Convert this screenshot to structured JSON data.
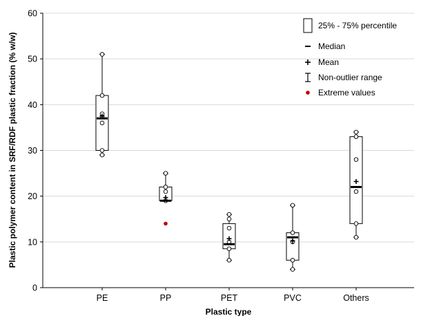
{
  "chart_data": {
    "type": "box",
    "xlabel": "Plastic type",
    "ylabel": "Plastic polymer content in SRF/RDF plastic fraction (% w/w)",
    "ylim": [
      0,
      60
    ],
    "yticks": [
      0,
      10,
      20,
      30,
      40,
      50,
      60
    ],
    "grid": true,
    "legend_position": "top-right",
    "categories": [
      "PE",
      "PP",
      "PET",
      "PVC",
      "Others"
    ],
    "boxes": [
      {
        "category": "PE",
        "q1": 30,
        "median": 37,
        "q3": 42,
        "mean": 37.5,
        "whisker_low": 29,
        "whisker_high": 51,
        "points": [
          29,
          30,
          36,
          37.5,
          38,
          42,
          51
        ],
        "extremes": []
      },
      {
        "category": "PP",
        "q1": 19,
        "median": 19,
        "q3": 22,
        "mean": 19.7,
        "whisker_low": 19,
        "whisker_high": 25,
        "points": [
          19,
          21,
          22,
          25
        ],
        "extremes": [
          14
        ]
      },
      {
        "category": "PET",
        "q1": 8.5,
        "median": 9.5,
        "q3": 14,
        "mean": 10.7,
        "whisker_low": 6,
        "whisker_high": 16,
        "points": [
          6,
          8.5,
          10,
          13,
          15,
          16
        ],
        "extremes": []
      },
      {
        "category": "PVC",
        "q1": 6,
        "median": 11,
        "q3": 12,
        "mean": 10.2,
        "whisker_low": 4,
        "whisker_high": 18,
        "points": [
          4,
          6,
          10,
          12,
          18
        ],
        "extremes": []
      },
      {
        "category": "Others",
        "q1": 14,
        "median": 22,
        "q3": 33,
        "mean": 23.2,
        "whisker_low": 11,
        "whisker_high": 34,
        "points": [
          11,
          14,
          21,
          28,
          33,
          34
        ],
        "extremes": []
      }
    ],
    "legend": [
      {
        "symbol": "box",
        "label": "25% - 75% percentile"
      },
      {
        "symbol": "median",
        "label": "Median"
      },
      {
        "symbol": "mean",
        "label": "Mean"
      },
      {
        "symbol": "range",
        "label": "Non-outlier range"
      },
      {
        "symbol": "extreme",
        "label": "Extreme values"
      }
    ],
    "colors": {
      "extreme": "#c00000",
      "grid": "#d9d9d9",
      "box": "#000000"
    }
  }
}
